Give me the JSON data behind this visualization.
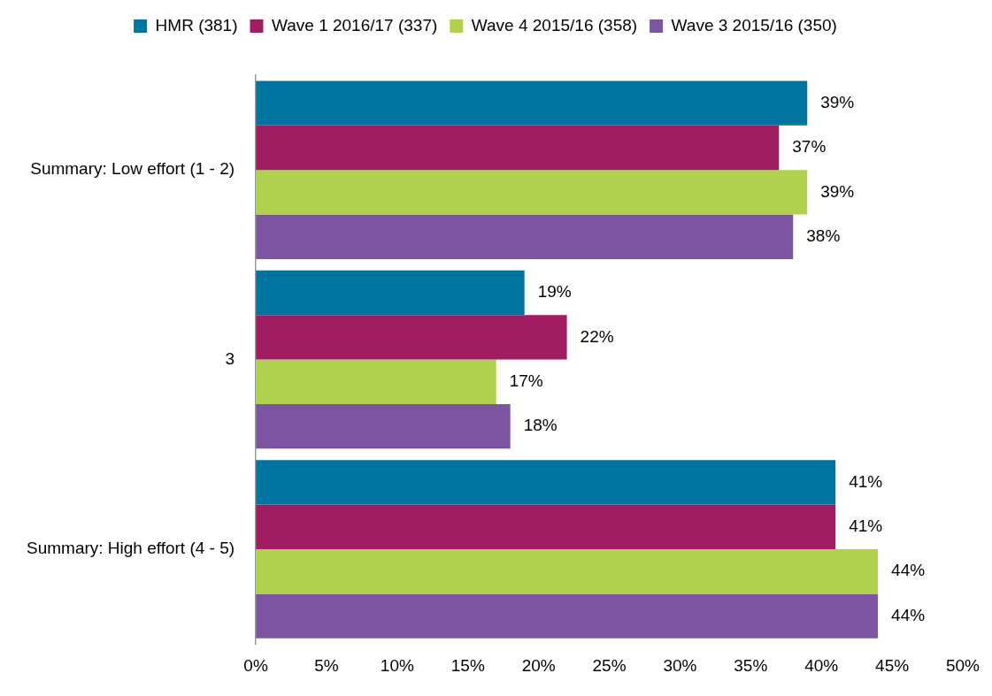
{
  "chart_data": {
    "type": "bar",
    "orientation": "horizontal",
    "categories": [
      "Summary: Low effort (1 - 2)",
      "3",
      "Summary: High effort (4 - 5)"
    ],
    "series": [
      {
        "name": "HMR (381)",
        "color": "#0073a0",
        "values": [
          39,
          19,
          41
        ],
        "value_labels": [
          "39%",
          "19%",
          "41%"
        ]
      },
      {
        "name": "Wave 1 2016/17 (337)",
        "color": "#a01c60",
        "values": [
          37,
          22,
          41
        ],
        "value_labels": [
          "37%",
          "22%",
          "41%"
        ]
      },
      {
        "name": "Wave 4 2015/16 (358)",
        "color": "#b0d150",
        "values": [
          39,
          17,
          44
        ],
        "value_labels": [
          "39%",
          "17%",
          "44%"
        ]
      },
      {
        "name": "Wave 3 2015/16 (350)",
        "color": "#7b55a0",
        "values": [
          38,
          18,
          44
        ],
        "value_labels": [
          "38%",
          "18%",
          "44%"
        ]
      }
    ],
    "xlim": [
      0,
      50
    ],
    "xticks": [
      {
        "value": 0,
        "label": "0%"
      },
      {
        "value": 5,
        "label": "5%"
      },
      {
        "value": 10,
        "label": "10%"
      },
      {
        "value": 15,
        "label": "15%"
      },
      {
        "value": 20,
        "label": "20%"
      },
      {
        "value": 25,
        "label": "25%"
      },
      {
        "value": 30,
        "label": "30%"
      },
      {
        "value": 35,
        "label": "35%"
      },
      {
        "value": 40,
        "label": "40%"
      },
      {
        "value": 45,
        "label": "45%"
      },
      {
        "value": 50,
        "label": "50%"
      }
    ],
    "grid": false,
    "legend": "top"
  }
}
